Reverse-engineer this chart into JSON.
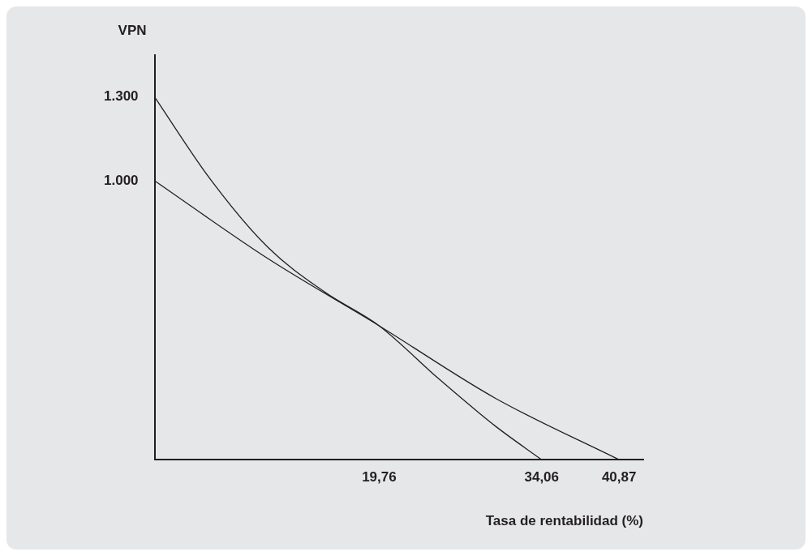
{
  "chart_data": {
    "type": "line",
    "xlabel": "Tasa de rentabilidad (%)",
    "ylabel": "VPN",
    "series": [
      {
        "color": "#231f20",
        "x": [
          0,
          5,
          10,
          15,
          19.76,
          25,
          30,
          34.06
        ],
        "values": [
          1300,
          1000,
          760,
          600,
          480,
          290,
          120,
          0
        ]
      },
      {
        "color": "#231f20",
        "x": [
          0,
          10,
          19.76,
          30,
          40.87
        ],
        "values": [
          1000,
          720,
          480,
          220,
          0
        ]
      }
    ],
    "xlim": [
      0,
      43
    ],
    "ylim": [
      0,
      1450
    ],
    "xticks": [
      {
        "value": 19.76,
        "label": "19,76"
      },
      {
        "value": 34.06,
        "label": "34,06"
      },
      {
        "value": 40.87,
        "label": "40,87"
      }
    ],
    "yticks": [
      {
        "value": 1000,
        "label": "1.000"
      },
      {
        "value": 1300,
        "label": "1.300"
      }
    ],
    "grid": false,
    "legend": false,
    "marker": "none",
    "line_style": "solid"
  }
}
